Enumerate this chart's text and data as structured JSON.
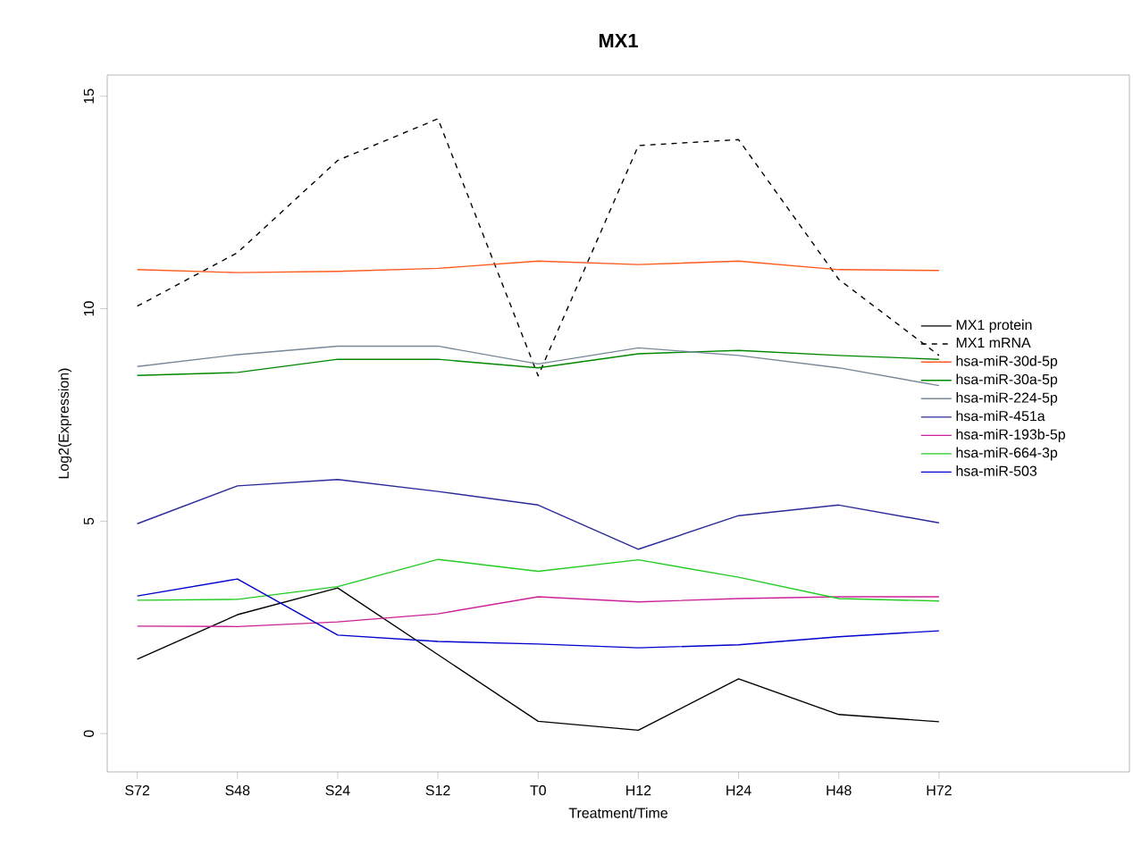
{
  "chart_data": {
    "type": "line",
    "title": "MX1",
    "xlabel": "Treatment/Time",
    "ylabel": "Log2(Expression)",
    "categories": [
      "S72",
      "S48",
      "S24",
      "S12",
      "T0",
      "H12",
      "H24",
      "H48",
      "H72"
    ],
    "ylim": [
      -0.9,
      15.5
    ],
    "yticks": [
      0,
      5,
      10,
      15
    ],
    "legend": "right",
    "grid": false,
    "series": [
      {
        "name": "MX1 protein",
        "color": "#000000",
        "values": [
          1.75,
          2.8,
          3.43,
          1.86,
          0.29,
          0.08,
          1.29,
          0.45,
          0.28
        ]
      },
      {
        "name": "MX1 mRNA",
        "color": "#000000",
        "line_style": "dashed",
        "values": [
          10.06,
          11.32,
          13.49,
          14.47,
          8.42,
          13.84,
          13.98,
          10.69,
          8.9
        ]
      },
      {
        "name": "hsa-miR-30d-5p",
        "color": "#ff5a1e",
        "values": [
          10.92,
          10.85,
          10.88,
          10.95,
          11.12,
          11.04,
          11.12,
          10.92,
          10.9
        ]
      },
      {
        "name": "hsa-miR-30a-5p",
        "color": "#008800",
        "values": [
          8.43,
          8.5,
          8.81,
          8.81,
          8.61,
          8.94,
          9.02,
          8.9,
          8.81
        ]
      },
      {
        "name": "hsa-miR-224-5p",
        "color": "#778899",
        "values": [
          8.64,
          8.92,
          9.12,
          9.12,
          8.7,
          9.08,
          8.9,
          8.61,
          8.19
        ]
      },
      {
        "name": "hsa-miR-451a",
        "color": "#2a2a9a",
        "values": [
          4.94,
          5.83,
          5.98,
          5.7,
          5.38,
          4.34,
          5.13,
          5.38,
          4.96
        ]
      },
      {
        "name": "hsa-miR-193b-5p",
        "color": "#cc2299",
        "values": [
          2.53,
          2.52,
          2.63,
          2.82,
          3.22,
          3.1,
          3.18,
          3.22,
          3.22
        ]
      },
      {
        "name": "hsa-miR-664-3p",
        "color": "#22cc22",
        "values": [
          3.14,
          3.16,
          3.46,
          4.1,
          3.82,
          4.09,
          3.68,
          3.18,
          3.12
        ]
      },
      {
        "name": "hsa-miR-503",
        "color": "#0000cc",
        "values": [
          3.24,
          3.64,
          2.32,
          2.17,
          2.11,
          2.02,
          2.09,
          2.28,
          2.42
        ]
      }
    ]
  }
}
